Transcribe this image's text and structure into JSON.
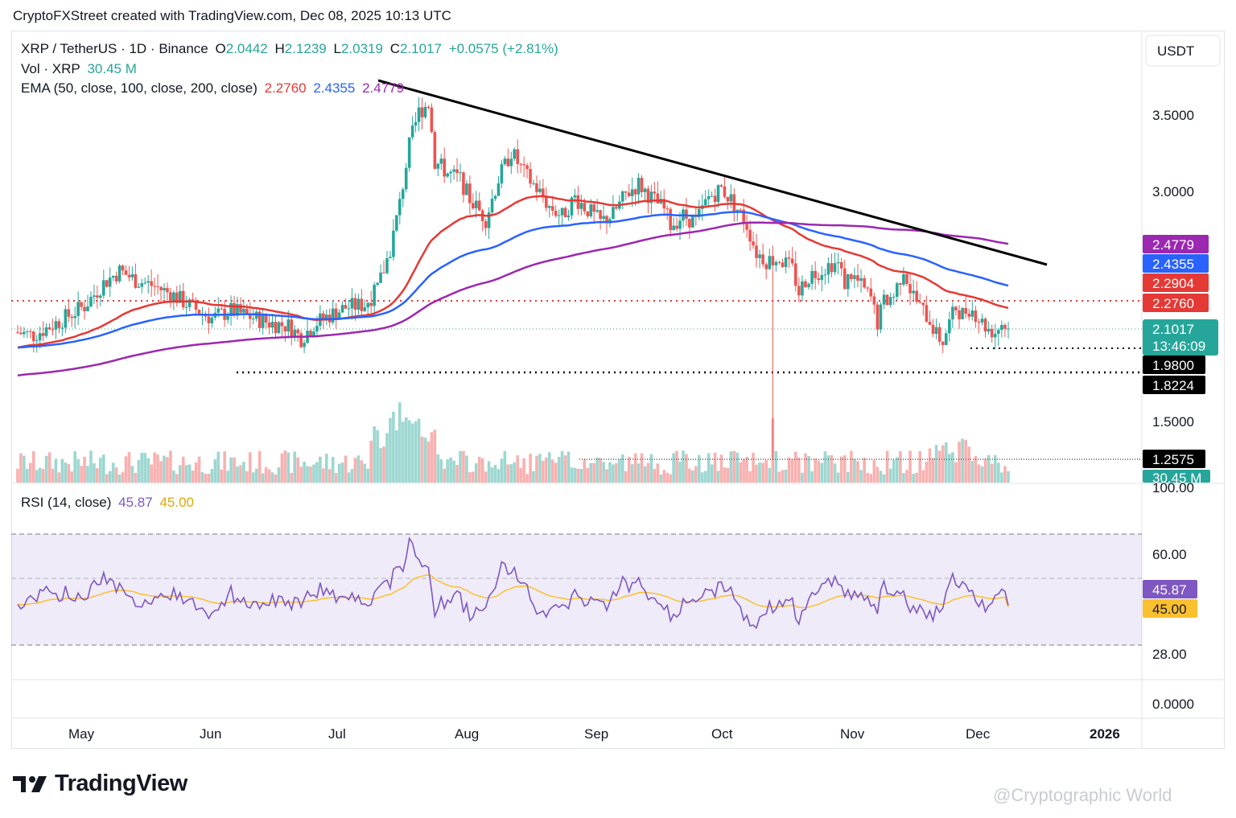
{
  "header": {
    "text": "CryptoFXStreet created with TradingView.com, Dec 08, 2025 10:13 UTC"
  },
  "legend": {
    "symbol": "XRP / TetherUS · 1D · Binance",
    "o_label": "O",
    "o": "2.0442",
    "h_label": "H",
    "h": "2.1239",
    "l_label": "L",
    "l": "2.0319",
    "c_label": "C",
    "c": "2.1017",
    "change": "+0.0575 (+2.81%)",
    "vol_label": "Vol · XRP",
    "vol": "30.45 M",
    "ema_label": "EMA (50, close, 100, close, 200, close)",
    "ema50": "2.2760",
    "ema100": "2.4355",
    "ema200": "2.4779",
    "rsi_label": "RSI (14, close)",
    "rsi": "45.87",
    "rsi_ma": "45.00"
  },
  "currency": "USDT",
  "colors": {
    "up": "#26a69a",
    "down": "#ef5350",
    "ema50": "#e53935",
    "ema100": "#2962ff",
    "ema200": "#9c27b0",
    "rsi": "#7e57c2",
    "rsi_ma": "#fbc02d",
    "trend": "#000000"
  },
  "price_axis": {
    "ticks": [
      "3.5000",
      "3.0000",
      "1.5000"
    ]
  },
  "rsi_axis": {
    "ticks": [
      "100.00",
      "60.00",
      "28.00",
      "0.0000"
    ]
  },
  "price_labels": [
    {
      "text": "2.4779",
      "bg": "#9c27b0",
      "fg": "#ffffff"
    },
    {
      "text": "2.4355",
      "bg": "#2962ff",
      "fg": "#ffffff"
    },
    {
      "text": "2.2904",
      "bg": "#e53935",
      "fg": "#ffffff"
    },
    {
      "text": "2.2760",
      "bg": "#e53935",
      "fg": "#ffffff"
    },
    {
      "text": "2.1017",
      "bg": "#26a69a",
      "fg": "#ffffff"
    },
    {
      "text": "13:46:09",
      "bg": "#26a69a",
      "fg": "#ffffff"
    },
    {
      "text": "1.9800",
      "bg": "#000000",
      "fg": "#ffffff"
    },
    {
      "text": "1.8224",
      "bg": "#000000",
      "fg": "#ffffff"
    },
    {
      "text": "1.2575",
      "bg": "#000000",
      "fg": "#ffffff"
    },
    {
      "text": "30.45 M",
      "bg": "#26a69a",
      "fg": "#ffffff"
    }
  ],
  "rsi_labels": [
    {
      "text": "45.87",
      "bg": "#7e57c2",
      "fg": "#ffffff"
    },
    {
      "text": "45.00",
      "bg": "#fbc02d",
      "fg": "#131722"
    }
  ],
  "time_axis": {
    "labels": [
      "May",
      "Jun",
      "Jul",
      "Aug",
      "Sep",
      "Oct",
      "Nov",
      "Dec",
      "2026"
    ]
  },
  "brand": "TradingView",
  "watermark": "@Cryptographic World",
  "chart_data": {
    "type": "candlestick",
    "timeframe": "1D",
    "x_range": [
      "2025-04-19",
      "2025-12-08"
    ],
    "y_axis_ticks": [
      3.5,
      3.0,
      1.5
    ],
    "levels": {
      "resistance_dotted_red": 2.2904,
      "support_1": 1.98,
      "support_2": 1.8224,
      "volume_line": 1.2575
    },
    "trendline": {
      "from": {
        "date": "2025-07-18",
        "price": 3.75
      },
      "to": {
        "date": "2025-12-15",
        "price": 2.33
      }
    },
    "monthly_closes_approx": [
      {
        "month": "May",
        "close": 2.35
      },
      {
        "month": "Jun",
        "close": 2.2
      },
      {
        "month": "Jul",
        "close": 3.0
      },
      {
        "month": "Aug",
        "close": 2.8
      },
      {
        "month": "Sep",
        "close": 2.85
      },
      {
        "month": "Oct",
        "close": 2.55
      },
      {
        "month": "Nov",
        "close": 2.2
      },
      {
        "month": "Dec",
        "close": 2.1017
      }
    ],
    "last_candle": {
      "open": 2.0442,
      "high": 2.1239,
      "low": 2.0319,
      "close": 2.1017
    },
    "ema": {
      "ema50": 2.276,
      "ema100": 2.4355,
      "ema200": 2.4779
    },
    "volume_last": "30.45 M",
    "rsi": {
      "value": 45.87,
      "ma": 45.0,
      "bands": [
        70,
        30
      ]
    }
  }
}
